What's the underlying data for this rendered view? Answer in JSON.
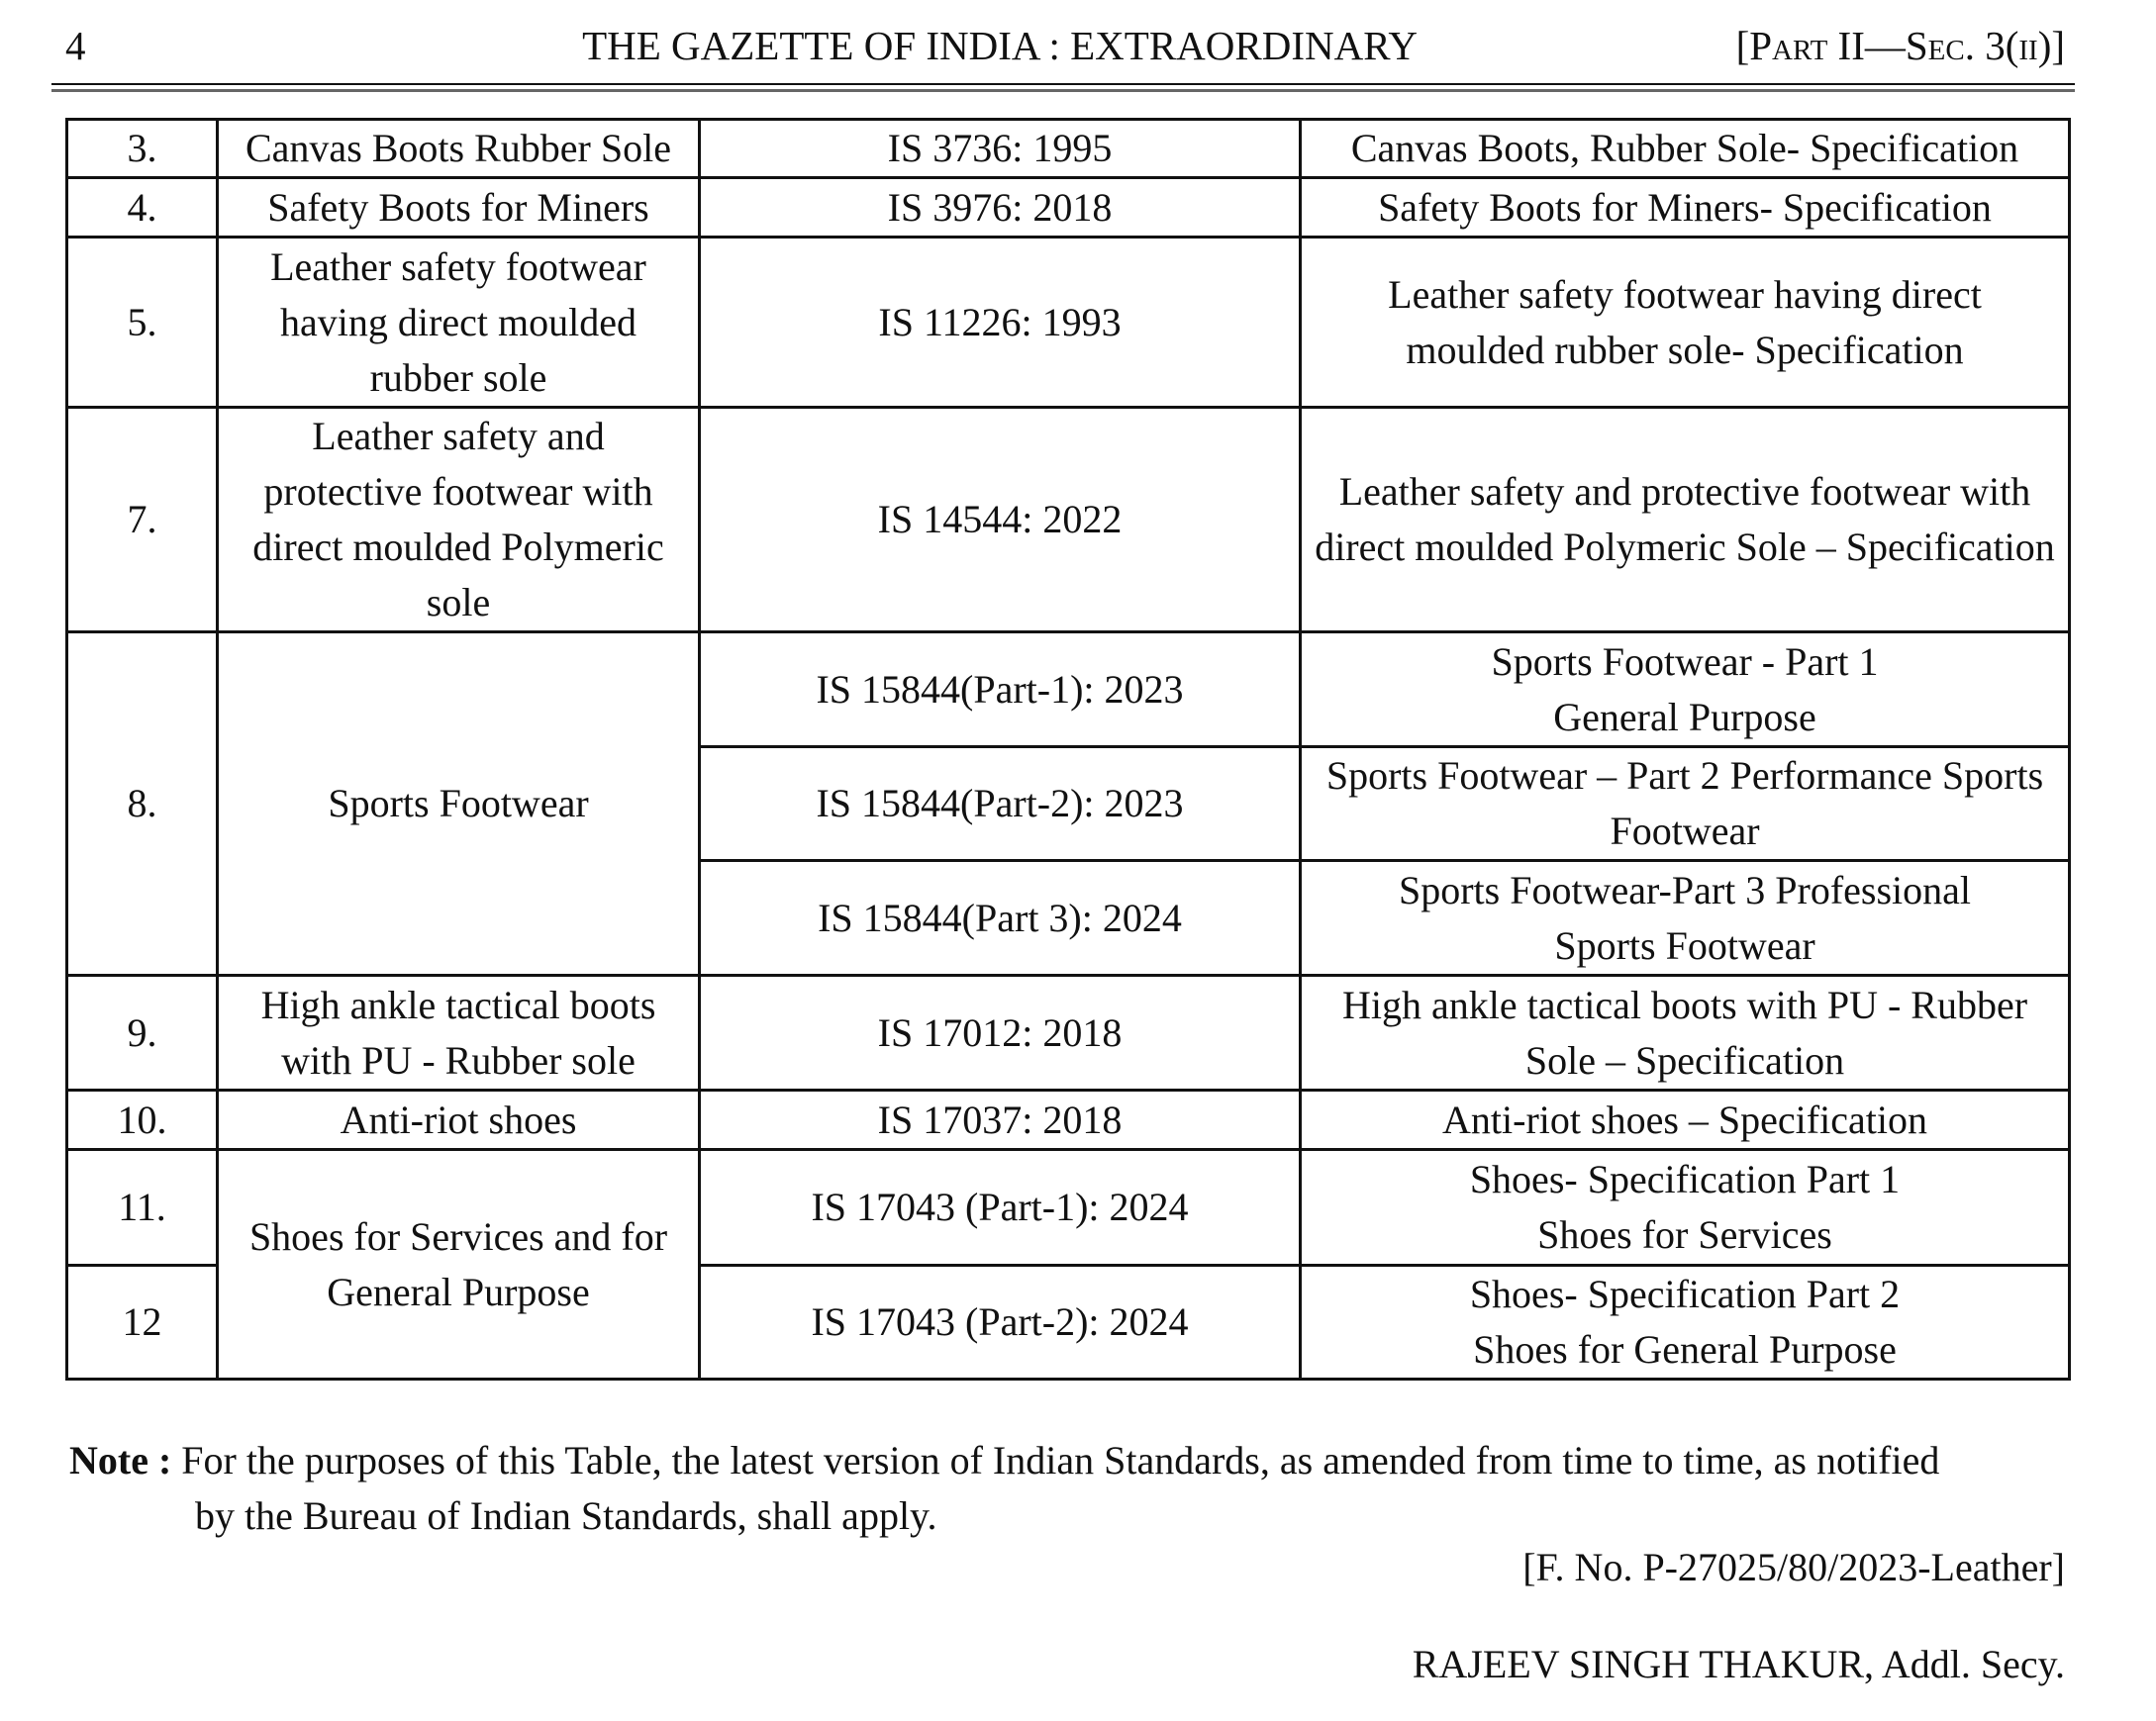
{
  "header": {
    "page_number": "4",
    "title": "THE GAZETTE OF INDIA : EXTRAORDINARY",
    "part": "[Part II—Sec. 3(ii)]"
  },
  "table": {
    "rows": [
      {
        "no": "3.",
        "item": "Canvas Boots Rubber Sole",
        "standard": "IS 3736: 1995",
        "title": "Canvas Boots, Rubber Sole- Specification"
      },
      {
        "no": "4.",
        "item": "Safety Boots for Miners",
        "standard": "IS 3976: 2018",
        "title": "Safety Boots for Miners- Specification"
      },
      {
        "no": "5.",
        "item": "Leather safety footwear having direct moulded rubber sole",
        "standard": "IS 11226: 1993",
        "title": "Leather safety footwear having direct moulded rubber sole- Specification"
      },
      {
        "no": "7.",
        "item": "Leather safety and protective footwear with direct moulded Polymeric sole",
        "standard": "IS 14544: 2022",
        "title": "Leather safety and protective footwear with direct moulded Polymeric Sole – Specification"
      },
      {
        "no": "8.",
        "item": "Sports Footwear",
        "parts": [
          {
            "standard": "IS 15844(Part-1): 2023",
            "title": "Sports Footwear - Part 1 General Purpose"
          },
          {
            "standard": "IS 15844(Part-2): 2023",
            "title": "Sports Footwear – Part 2 Performance Sports Footwear"
          },
          {
            "standard": "IS 15844(Part 3): 2024",
            "title": "Sports Footwear-Part 3 Professional Sports Footwear"
          }
        ]
      },
      {
        "no": "9.",
        "item": "High ankle tactical boots with PU - Rubber sole",
        "standard": "IS 17012: 2018",
        "title": "High ankle tactical boots with PU - Rubber Sole – Specification"
      },
      {
        "no": "10.",
        "item": "Anti-riot shoes",
        "standard": "IS 17037: 2018",
        "title": "Anti-riot shoes – Specification"
      },
      {
        "no": "11.",
        "item": "Shoes for Services and for General Purpose",
        "standard": "IS 17043 (Part-1): 2024",
        "title": "Shoes- Specification Part 1 Shoes for Services"
      },
      {
        "no": "12",
        "standard": "IS 17043 (Part-2): 2024",
        "title": "Shoes- Specification Part 2 Shoes for General Purpose"
      }
    ]
  },
  "note": {
    "label": "Note :",
    "line1": "For the purposes of this Table, the latest version of Indian Standards, as amended from time to time, as notified",
    "line2": "by the Bureau of Indian Standards, shall apply."
  },
  "file_number": "[F. No. P-27025/80/2023-Leather]",
  "signatory": "RAJEEV SINGH THAKUR, Addl. Secy."
}
